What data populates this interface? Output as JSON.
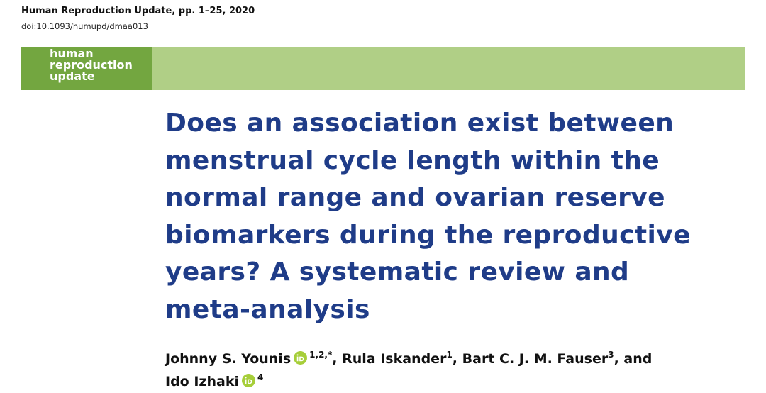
{
  "header": {
    "journal_citation": "Human Reproduction Update, pp. 1–25, 2020",
    "doi": "doi:10.1093/humupd/dmaa013"
  },
  "banner": {
    "logo_lines": [
      "human",
      "reproduction",
      "update"
    ]
  },
  "article": {
    "title_lines": [
      "Does an association exist between",
      "menstrual cycle length within the",
      "normal range and ovarian reserve",
      "biomarkers during the reproductive",
      "years? A systematic review and",
      "meta-analysis"
    ],
    "authors": [
      {
        "name": "Johnny S. Younis",
        "orcid": true,
        "affiliation": "1,2,*",
        "after": ","
      },
      {
        "name": "Rula Iskander",
        "orcid": false,
        "affiliation": "1",
        "after": ","
      },
      {
        "name": "Bart C. J. M. Fauser",
        "orcid": false,
        "affiliation": "3",
        "after": ", and"
      },
      {
        "name": "Ido Izhaki",
        "orcid": true,
        "affiliation": "4"
      }
    ]
  }
}
